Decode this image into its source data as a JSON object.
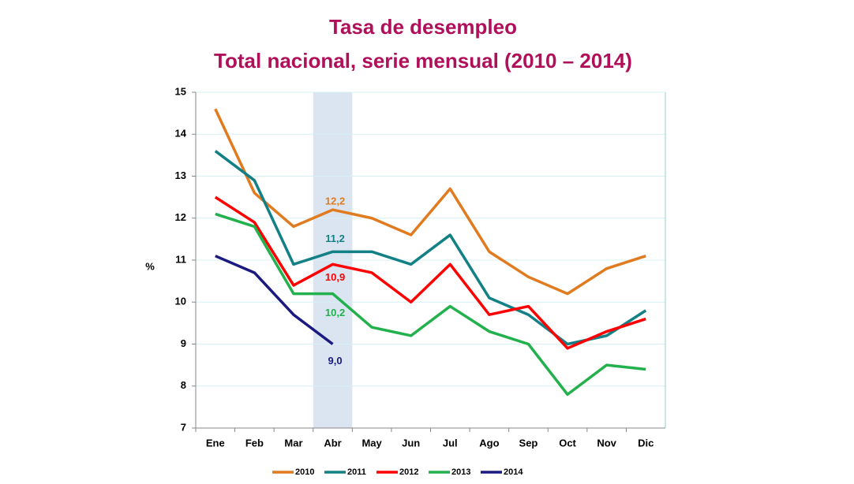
{
  "chart_data": {
    "type": "line",
    "title": "Tasa de desempleo",
    "subtitle": "Total nacional, serie mensual (2010 – 2014)",
    "y_label": "%",
    "categories": [
      "Ene",
      "Feb",
      "Mar",
      "Abr",
      "May",
      "Jun",
      "Jul",
      "Ago",
      "Sep",
      "Oct",
      "Nov",
      "Dic"
    ],
    "highlight_index": 3,
    "ylim": [
      7,
      15
    ],
    "yticks": [
      7,
      8,
      9,
      10,
      11,
      12,
      13,
      14,
      15
    ],
    "grid": true,
    "legend": "bottom",
    "series": [
      {
        "name": "2010",
        "color": "#e07b20",
        "values": [
          14.6,
          12.6,
          11.8,
          12.2,
          12.0,
          11.6,
          12.7,
          11.2,
          10.6,
          10.2,
          10.8,
          11.1
        ],
        "value_labels": [
          null,
          null,
          null,
          "12,2",
          null,
          null,
          null,
          null,
          null,
          null,
          null,
          null
        ]
      },
      {
        "name": "2011",
        "color": "#138085",
        "values": [
          13.6,
          12.9,
          10.9,
          11.2,
          11.2,
          10.9,
          11.6,
          10.1,
          9.7,
          9.0,
          9.2,
          9.8
        ],
        "value_labels": [
          null,
          null,
          null,
          "11,2",
          null,
          null,
          null,
          null,
          null,
          null,
          null,
          null
        ]
      },
      {
        "name": "2012",
        "color": "#ff0000",
        "values": [
          12.5,
          11.9,
          10.4,
          10.9,
          10.7,
          10.0,
          10.9,
          9.7,
          9.9,
          8.9,
          9.3,
          9.6
        ],
        "value_labels": [
          null,
          null,
          null,
          "10,9",
          null,
          null,
          null,
          null,
          null,
          null,
          null,
          null
        ]
      },
      {
        "name": "2013",
        "color": "#22b14c",
        "values": [
          12.1,
          11.8,
          10.2,
          10.2,
          9.4,
          9.2,
          9.9,
          9.3,
          9.0,
          7.8,
          8.5,
          8.4
        ],
        "value_labels": [
          null,
          null,
          null,
          "10,2",
          null,
          null,
          null,
          null,
          null,
          null,
          null,
          null
        ]
      },
      {
        "name": "2014",
        "color": "#1a1a80",
        "values": [
          11.1,
          10.7,
          9.7,
          9.0,
          null,
          null,
          null,
          null,
          null,
          null,
          null,
          null
        ],
        "value_labels": [
          null,
          null,
          null,
          "9,0",
          null,
          null,
          null,
          null,
          null,
          null,
          null,
          null
        ]
      }
    ]
  }
}
